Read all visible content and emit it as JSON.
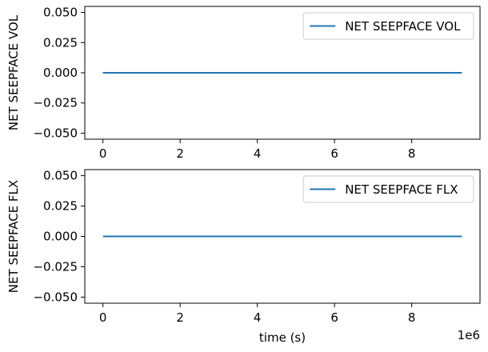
{
  "chart_data": [
    {
      "type": "line",
      "ylabel": "NET SEEPFACE VOL",
      "xlabel": "",
      "xlim": [
        -0.47,
        9.77
      ],
      "ylim": [
        -0.055,
        0.055
      ],
      "x_ticks": [
        0,
        2,
        4,
        6,
        8
      ],
      "y_ticks": [
        -0.05,
        -0.025,
        0.0,
        0.025,
        0.05
      ],
      "y_tick_labels": [
        "−0.050",
        "−0.025",
        "0.000",
        "0.025",
        "0.050"
      ],
      "x_offset_label": "",
      "legend_position": "upper-right",
      "grid": false,
      "series": [
        {
          "name": "NET SEEPFACE VOL",
          "color": "#1f77b4",
          "x": [
            0,
            9.3
          ],
          "y": [
            0,
            0
          ]
        }
      ]
    },
    {
      "type": "line",
      "ylabel": "NET SEEPFACE FLX",
      "xlabel": "time (s)",
      "xlim": [
        -0.47,
        9.77
      ],
      "ylim": [
        -0.055,
        0.055
      ],
      "x_ticks": [
        0,
        2,
        4,
        6,
        8
      ],
      "y_ticks": [
        -0.05,
        -0.025,
        0.0,
        0.025,
        0.05
      ],
      "y_tick_labels": [
        "−0.050",
        "−0.025",
        "0.000",
        "0.025",
        "0.050"
      ],
      "x_offset_label": "1e6",
      "legend_position": "upper-right",
      "grid": false,
      "series": [
        {
          "name": "NET SEEPFACE FLX",
          "color": "#1f77b4",
          "x": [
            0,
            9.3
          ],
          "y": [
            0,
            0
          ]
        }
      ]
    }
  ]
}
